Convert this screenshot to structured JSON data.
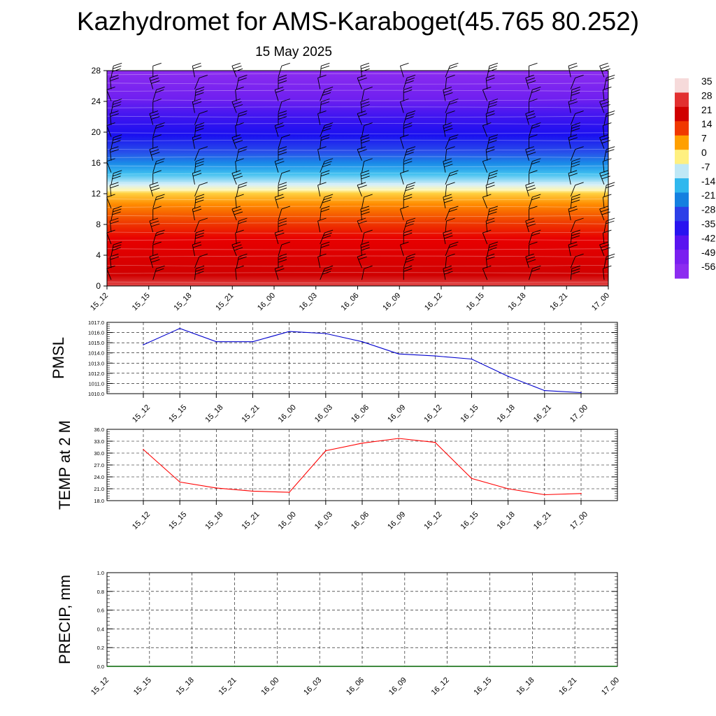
{
  "title": "Kazhydromet for AMS-Karaboget(45.765 80.252)",
  "subtitle": "15 May 2025",
  "time_labels": [
    "15_12",
    "15_15",
    "15_18",
    "15_21",
    "16_00",
    "16_03",
    "16_06",
    "16_09",
    "16_12",
    "16_15",
    "16_18",
    "16_21",
    "17_00"
  ],
  "colorbar": {
    "labels": [
      "35",
      "28",
      "21",
      "14",
      "7",
      "0",
      "-7",
      "-14",
      "-21",
      "-28",
      "-35",
      "-42",
      "-49",
      "-56"
    ],
    "colors": [
      "#f6dada",
      "#e23030",
      "#d00000",
      "#f03800",
      "#ffa000",
      "#fff080",
      "#bfe8f6",
      "#30b8ee",
      "#1480e0",
      "#2c40e8",
      "#2814f0",
      "#5a14f0",
      "#7a20f0",
      "#8c2cf0"
    ]
  },
  "chart_data": [
    {
      "type": "heatmap",
      "name": "temperature-wind-cross-section",
      "x": [
        "15_12",
        "15_15",
        "15_18",
        "15_21",
        "16_00",
        "16_03",
        "16_06",
        "16_09",
        "16_12",
        "16_15",
        "16_18",
        "16_21",
        "17_00"
      ],
      "ylim": [
        0,
        28
      ],
      "yticks": [
        0,
        4,
        8,
        12,
        16,
        20,
        24,
        28
      ],
      "color_range": [
        -56,
        35
      ],
      "wind_barbs": true
    },
    {
      "type": "line",
      "name": "pmsl",
      "ylabel": "PMSL",
      "x": [
        "15_12",
        "15_15",
        "15_18",
        "15_21",
        "16_00",
        "16_03",
        "16_06",
        "16_09",
        "16_12",
        "16_15",
        "16_18",
        "16_21",
        "17_00"
      ],
      "values": [
        1014.8,
        1016.4,
        1015.1,
        1015.1,
        1016.1,
        1015.9,
        1015.1,
        1013.9,
        1013.7,
        1013.4,
        1011.7,
        1010.3,
        1010.1
      ],
      "ylim": [
        1010.0,
        1017.0
      ],
      "yticks": [
        "1010.0",
        "1011.0",
        "1012.0",
        "1013.0",
        "1014.0",
        "1015.0",
        "1016.0",
        "1017.0"
      ],
      "color": "#0000cc",
      "grid": true
    },
    {
      "type": "line",
      "name": "temp-2m",
      "ylabel": "TEMP at 2 M",
      "x": [
        "15_12",
        "15_15",
        "15_18",
        "15_21",
        "16_00",
        "16_03",
        "16_06",
        "16_09",
        "16_12",
        "16_15",
        "16_18",
        "16_21",
        "17_00"
      ],
      "values": [
        30.9,
        22.7,
        21.2,
        20.4,
        20.1,
        30.6,
        32.5,
        33.7,
        32.7,
        23.6,
        21.0,
        19.5,
        19.8
      ],
      "ylim": [
        18.0,
        36.0
      ],
      "yticks": [
        "18.0",
        "21.0",
        "24.0",
        "27.0",
        "30.0",
        "33.0",
        "36.0"
      ],
      "color": "#ff0000",
      "grid": true
    },
    {
      "type": "line",
      "name": "precip",
      "ylabel": "PRECIP, mm",
      "x": [
        "15_12",
        "15_15",
        "15_18",
        "15_21",
        "16_00",
        "16_03",
        "16_06",
        "16_09",
        "16_12",
        "16_15",
        "16_18",
        "16_21",
        "17_00"
      ],
      "values": [
        0,
        0,
        0,
        0,
        0,
        0,
        0,
        0,
        0,
        0,
        0,
        0,
        0
      ],
      "ylim": [
        0.0,
        1.0
      ],
      "yticks": [
        "0.0",
        "0.2",
        "0.4",
        "0.6",
        "0.8",
        "1.0"
      ],
      "color": "#006400",
      "grid": true
    }
  ]
}
